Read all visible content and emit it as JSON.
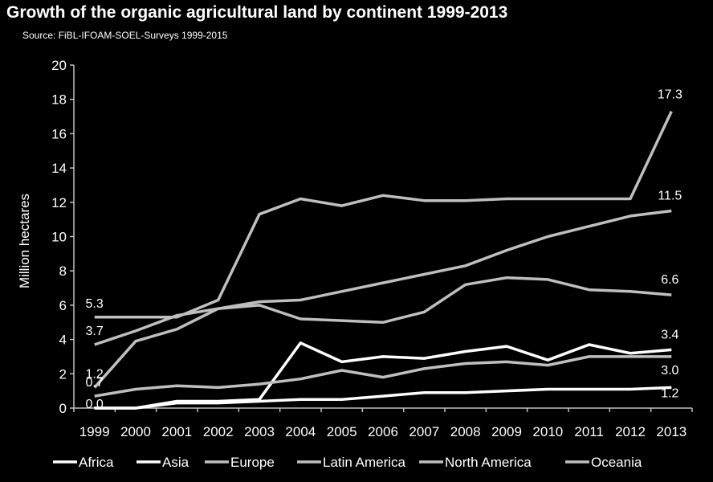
{
  "chart_data": {
    "type": "line",
    "title": "Growth of the organic agricultural land  by continent 1999-2013",
    "subtitle": "Source: FiBL-IFOAM-SOEL-Surveys 1999-2015",
    "ylabel": "Million hectares",
    "xlabel": "",
    "ylim": [
      0,
      20
    ],
    "yticks": [
      "0",
      "2",
      "4",
      "6",
      "8",
      "10",
      "12",
      "14",
      "16",
      "18",
      "20"
    ],
    "categories": [
      "1999",
      "2000",
      "2001",
      "2002",
      "2003",
      "2004",
      "2005",
      "2006",
      "2007",
      "2008",
      "2009",
      "2010",
      "2011",
      "2012",
      "2013"
    ],
    "grid": false,
    "legend": "bottom",
    "series": [
      {
        "name": "Africa",
        "color": "#ffffff",
        "values": [
          0.0,
          0.0,
          0.3,
          0.3,
          0.4,
          0.5,
          0.5,
          0.7,
          0.9,
          0.9,
          1.0,
          1.1,
          1.1,
          1.1,
          1.2
        ],
        "start_label": "0.0",
        "end_label": "1.2"
      },
      {
        "name": "Asia",
        "color": "#ffffff",
        "values": [
          0.0,
          0.0,
          0.4,
          0.4,
          0.5,
          3.8,
          2.7,
          3.0,
          2.9,
          3.3,
          3.6,
          2.8,
          3.7,
          3.2,
          3.4
        ],
        "start_label": "",
        "end_label": "3.4"
      },
      {
        "name": "Europe",
        "color": "#bfbfbf",
        "values": [
          3.7,
          4.5,
          5.4,
          5.8,
          6.2,
          6.3,
          6.8,
          7.3,
          7.8,
          8.3,
          9.2,
          10.0,
          10.6,
          11.2,
          11.5
        ],
        "start_label": "3.7",
        "end_label": "11.5"
      },
      {
        "name": "Latin America",
        "color": "#bfbfbf",
        "values": [
          1.2,
          3.9,
          4.6,
          5.8,
          6.0,
          5.2,
          5.1,
          5.0,
          5.6,
          7.2,
          7.6,
          7.5,
          6.9,
          6.8,
          6.6
        ],
        "start_label": "1.2",
        "end_label": "6.6"
      },
      {
        "name": "North America",
        "color": "#bfbfbf",
        "values": [
          0.7,
          1.1,
          1.3,
          1.2,
          1.4,
          1.7,
          2.2,
          1.8,
          2.3,
          2.6,
          2.7,
          2.5,
          3.0,
          3.0,
          3.0
        ],
        "start_label": "0.7",
        "end_label": "3.0"
      },
      {
        "name": "Oceania",
        "color": "#bfbfbf",
        "values": [
          5.3,
          5.3,
          5.3,
          6.3,
          11.3,
          12.2,
          11.8,
          12.4,
          12.1,
          12.1,
          12.2,
          12.2,
          12.2,
          12.2,
          17.3
        ],
        "start_label": "5.3",
        "end_label": "17.3"
      }
    ]
  }
}
